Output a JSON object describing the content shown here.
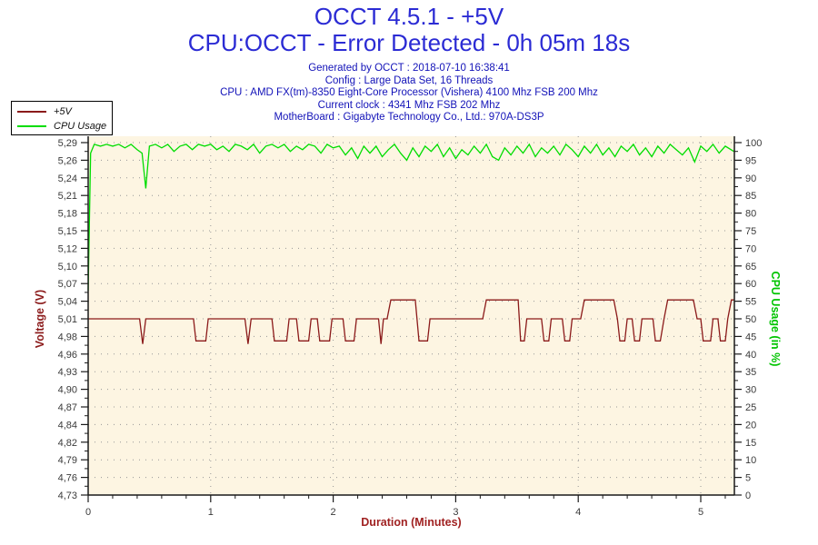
{
  "header": {
    "title_line1": "OCCT 4.5.1 - +5V",
    "title_line2": "CPU:OCCT - Error Detected - 0h 05m 18s"
  },
  "info": {
    "lines": [
      "Generated by OCCT : 2018-07-10 16:38:41",
      "Config : Large Data Set, 16 Threads",
      "CPU : AMD FX(tm)-8350 Eight-Core Processor (Vishera) 4100 Mhz FSB 200 Mhz",
      "Current clock : 4341 Mhz FSB 202 Mhz",
      "MotherBoard : Gigabyte Technology Co., Ltd.: 970A-DS3P"
    ]
  },
  "legend": {
    "items": [
      {
        "label": "+5V",
        "color": "#8b1a1a"
      },
      {
        "label": "CPU Usage",
        "color": "#00dd00"
      }
    ]
  },
  "colors": {
    "title_blue": "#2b2bd4",
    "info_blue": "#1212b8",
    "voltage_red": "#8b1a1a",
    "cpu_green": "#00dd00",
    "plot_bg": "#fdf5e2",
    "grid_dot": "#979797",
    "axis": "#1a1a1a"
  },
  "chart_data": {
    "type": "line",
    "title": "",
    "xlabel": "Duration (Minutes)",
    "ylabel_left": "Voltage (V)",
    "ylabel_right": "CPU Usage (in %)",
    "grid": "dotted",
    "legend_position": "top-left",
    "x_range": [
      0,
      5.27
    ],
    "x_major_ticks": [
      0,
      1,
      2,
      3,
      4,
      5
    ],
    "x_minor_step": 0.2,
    "y_left_range": [
      4.73,
      5.29
    ],
    "y_left_tick_labels": [
      "5,29",
      "5,26",
      "5,24",
      "5,21",
      "5,18",
      "5,15",
      "5,12",
      "5,10",
      "5,07",
      "5,04",
      "5,01",
      "4,98",
      "4,96",
      "4,93",
      "4,90",
      "4,87",
      "4,84",
      "4,82",
      "4,79",
      "4,76",
      "4,73"
    ],
    "y_right_range": [
      0,
      100
    ],
    "y_right_tick_labels": [
      "100",
      "95",
      "90",
      "85",
      "80",
      "75",
      "70",
      "65",
      "60",
      "55",
      "50",
      "45",
      "40",
      "35",
      "30",
      "25",
      "20",
      "15",
      "10",
      "5",
      "0"
    ],
    "series": [
      {
        "name": "+5V",
        "axis": "left",
        "color": "#8b1a1a",
        "points": [
          [
            0.0,
            5.01
          ],
          [
            0.42,
            5.01
          ],
          [
            0.445,
            4.97
          ],
          [
            0.47,
            5.01
          ],
          [
            0.86,
            5.01
          ],
          [
            0.88,
            4.975
          ],
          [
            0.96,
            4.975
          ],
          [
            0.98,
            5.01
          ],
          [
            1.28,
            5.01
          ],
          [
            1.305,
            4.97
          ],
          [
            1.33,
            5.01
          ],
          [
            1.5,
            5.01
          ],
          [
            1.52,
            4.975
          ],
          [
            1.62,
            4.975
          ],
          [
            1.64,
            5.01
          ],
          [
            1.7,
            5.01
          ],
          [
            1.72,
            4.975
          ],
          [
            1.8,
            4.975
          ],
          [
            1.82,
            5.01
          ],
          [
            1.87,
            5.01
          ],
          [
            1.89,
            4.975
          ],
          [
            1.97,
            4.975
          ],
          [
            1.99,
            5.01
          ],
          [
            2.08,
            5.01
          ],
          [
            2.1,
            4.975
          ],
          [
            2.17,
            4.975
          ],
          [
            2.19,
            5.01
          ],
          [
            2.37,
            5.01
          ],
          [
            2.39,
            4.97
          ],
          [
            2.41,
            5.01
          ],
          [
            2.44,
            5.01
          ],
          [
            2.47,
            5.04
          ],
          [
            2.67,
            5.04
          ],
          [
            2.7,
            4.975
          ],
          [
            2.77,
            4.975
          ],
          [
            2.79,
            5.01
          ],
          [
            3.22,
            5.01
          ],
          [
            3.25,
            5.04
          ],
          [
            3.51,
            5.04
          ],
          [
            3.53,
            4.975
          ],
          [
            3.56,
            4.975
          ],
          [
            3.58,
            5.01
          ],
          [
            3.7,
            5.01
          ],
          [
            3.72,
            4.975
          ],
          [
            3.76,
            4.975
          ],
          [
            3.78,
            5.01
          ],
          [
            3.87,
            5.01
          ],
          [
            3.89,
            4.975
          ],
          [
            3.93,
            4.975
          ],
          [
            3.95,
            5.01
          ],
          [
            4.02,
            5.01
          ],
          [
            4.05,
            5.04
          ],
          [
            4.29,
            5.04
          ],
          [
            4.32,
            5.01
          ],
          [
            4.34,
            4.975
          ],
          [
            4.38,
            4.975
          ],
          [
            4.4,
            5.01
          ],
          [
            4.44,
            5.01
          ],
          [
            4.46,
            4.975
          ],
          [
            4.5,
            4.975
          ],
          [
            4.52,
            5.01
          ],
          [
            4.61,
            5.01
          ],
          [
            4.63,
            4.975
          ],
          [
            4.67,
            4.975
          ],
          [
            4.7,
            5.01
          ],
          [
            4.73,
            5.04
          ],
          [
            4.94,
            5.04
          ],
          [
            4.97,
            5.01
          ],
          [
            5.0,
            5.01
          ],
          [
            5.02,
            4.975
          ],
          [
            5.08,
            4.975
          ],
          [
            5.1,
            5.01
          ],
          [
            5.14,
            5.01
          ],
          [
            5.16,
            4.975
          ],
          [
            5.2,
            4.975
          ],
          [
            5.22,
            5.01
          ],
          [
            5.25,
            5.04
          ],
          [
            5.27,
            5.04
          ]
        ]
      },
      {
        "name": "CPU Usage",
        "axis": "right",
        "color": "#00dd00",
        "points": [
          [
            0,
            58
          ],
          [
            0.02,
            97
          ],
          [
            0.05,
            99.5
          ],
          [
            0.1,
            99
          ],
          [
            0.15,
            99.5
          ],
          [
            0.2,
            99
          ],
          [
            0.25,
            99.5
          ],
          [
            0.3,
            98.5
          ],
          [
            0.35,
            99.5
          ],
          [
            0.4,
            98
          ],
          [
            0.44,
            97
          ],
          [
            0.47,
            87
          ],
          [
            0.5,
            99
          ],
          [
            0.55,
            99.5
          ],
          [
            0.6,
            98.5
          ],
          [
            0.65,
            99.5
          ],
          [
            0.7,
            97.5
          ],
          [
            0.75,
            99
          ],
          [
            0.8,
            99.5
          ],
          [
            0.85,
            98
          ],
          [
            0.9,
            99.5
          ],
          [
            0.95,
            99
          ],
          [
            1.0,
            99.5
          ],
          [
            1.05,
            98
          ],
          [
            1.1,
            99
          ],
          [
            1.15,
            97.5
          ],
          [
            1.2,
            99.5
          ],
          [
            1.25,
            99
          ],
          [
            1.3,
            98
          ],
          [
            1.35,
            99.5
          ],
          [
            1.4,
            97
          ],
          [
            1.45,
            99
          ],
          [
            1.5,
            99.5
          ],
          [
            1.55,
            98.5
          ],
          [
            1.6,
            99.5
          ],
          [
            1.65,
            97.5
          ],
          [
            1.7,
            99
          ],
          [
            1.75,
            98
          ],
          [
            1.8,
            99.5
          ],
          [
            1.85,
            99
          ],
          [
            1.9,
            97
          ],
          [
            1.95,
            99.5
          ],
          [
            2.0,
            98.5
          ],
          [
            2.05,
            99
          ],
          [
            2.1,
            96.5
          ],
          [
            2.15,
            98.5
          ],
          [
            2.2,
            95.5
          ],
          [
            2.25,
            99
          ],
          [
            2.3,
            97
          ],
          [
            2.35,
            99
          ],
          [
            2.4,
            96
          ],
          [
            2.45,
            98
          ],
          [
            2.5,
            99.5
          ],
          [
            2.55,
            97
          ],
          [
            2.6,
            95
          ],
          [
            2.65,
            98.5
          ],
          [
            2.7,
            96
          ],
          [
            2.75,
            99
          ],
          [
            2.8,
            97.5
          ],
          [
            2.85,
            99.5
          ],
          [
            2.9,
            96
          ],
          [
            2.95,
            98.5
          ],
          [
            3.0,
            95.5
          ],
          [
            3.05,
            98
          ],
          [
            3.1,
            96.5
          ],
          [
            3.15,
            99
          ],
          [
            3.2,
            97
          ],
          [
            3.25,
            99.5
          ],
          [
            3.3,
            96
          ],
          [
            3.35,
            95
          ],
          [
            3.4,
            98.5
          ],
          [
            3.45,
            96.5
          ],
          [
            3.5,
            99
          ],
          [
            3.55,
            97
          ],
          [
            3.6,
            99.5
          ],
          [
            3.65,
            96
          ],
          [
            3.7,
            98.5
          ],
          [
            3.75,
            97
          ],
          [
            3.8,
            99
          ],
          [
            3.85,
            96.5
          ],
          [
            3.9,
            99.5
          ],
          [
            3.95,
            98
          ],
          [
            4.0,
            96
          ],
          [
            4.05,
            99
          ],
          [
            4.1,
            97
          ],
          [
            4.15,
            99.5
          ],
          [
            4.2,
            96.5
          ],
          [
            4.25,
            98.5
          ],
          [
            4.3,
            96
          ],
          [
            4.35,
            99
          ],
          [
            4.4,
            97.5
          ],
          [
            4.45,
            99.5
          ],
          [
            4.5,
            96.5
          ],
          [
            4.55,
            98.5
          ],
          [
            4.6,
            96
          ],
          [
            4.65,
            99
          ],
          [
            4.7,
            97
          ],
          [
            4.75,
            99.5
          ],
          [
            4.8,
            98
          ],
          [
            4.85,
            96.5
          ],
          [
            4.9,
            98.5
          ],
          [
            4.95,
            94.5
          ],
          [
            5.0,
            99
          ],
          [
            5.05,
            97.5
          ],
          [
            5.1,
            99.5
          ],
          [
            5.15,
            97
          ],
          [
            5.2,
            99
          ],
          [
            5.27,
            97.5
          ]
        ]
      }
    ]
  }
}
